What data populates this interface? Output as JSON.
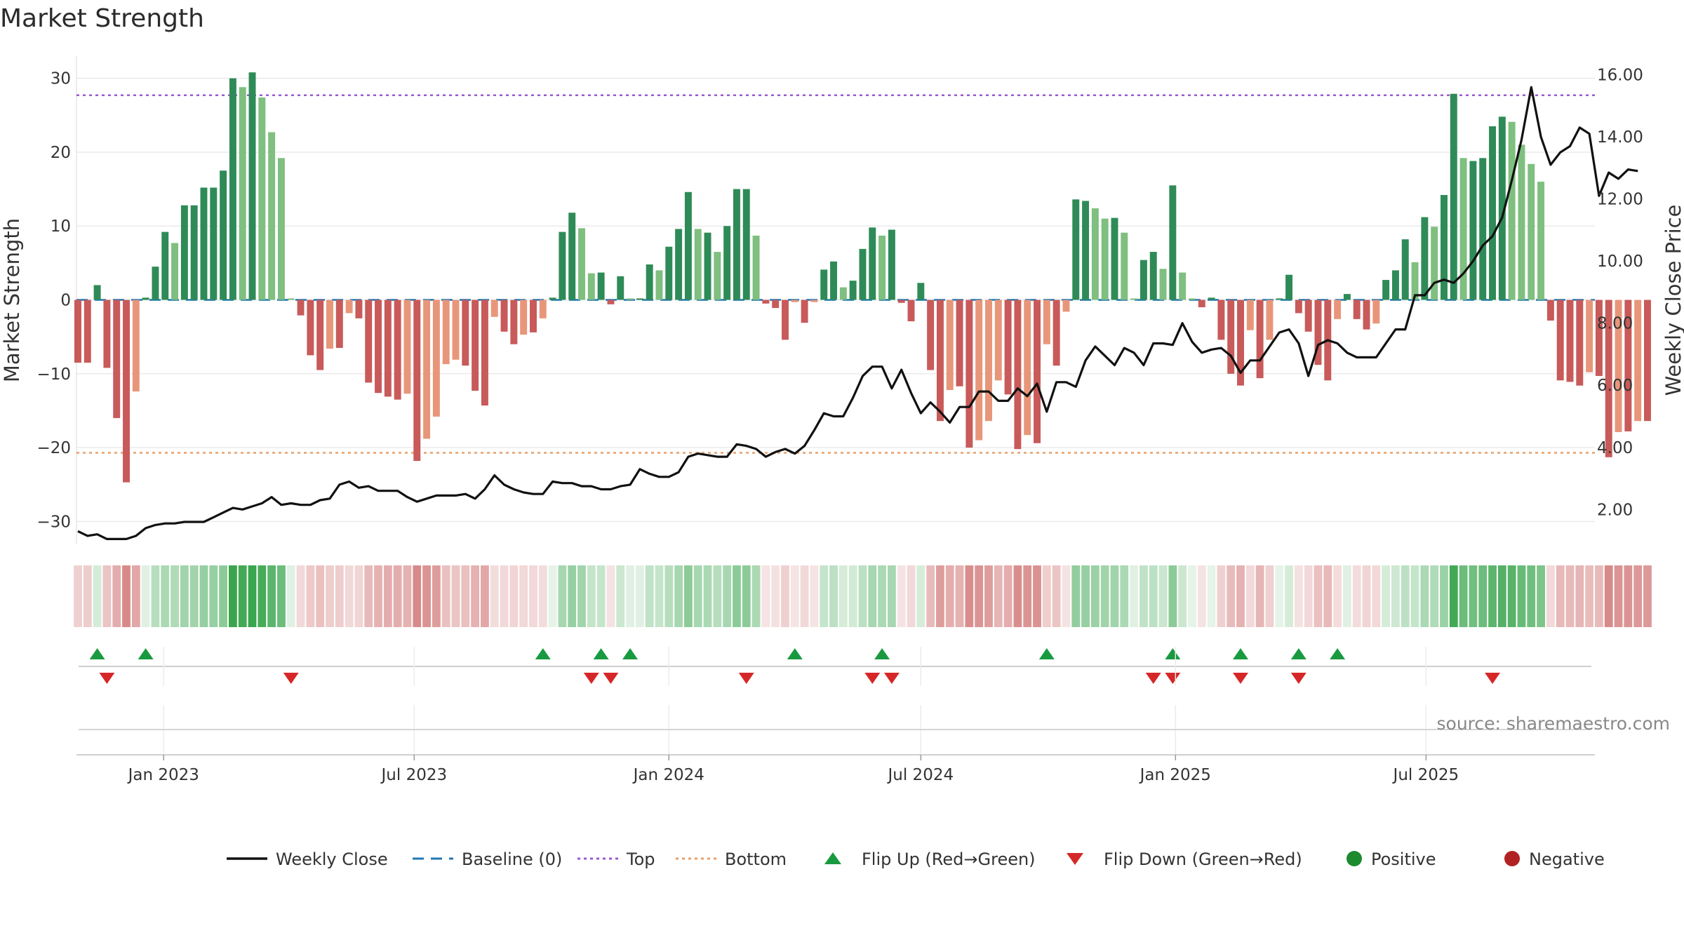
{
  "title": "Market Strength",
  "source": "source: sharemaestro.com",
  "chart_data": {
    "type": "bar",
    "title": "Market Strength",
    "ylabel_left": "Market Strength",
    "ylabel_right": "Weekly Close Price",
    "ylim_left": [
      -33,
      33
    ],
    "ylim_right": [
      0.9,
      16.6
    ],
    "yticks_left": [
      30,
      20,
      10,
      0,
      -10,
      -20,
      -30
    ],
    "ytick_labels_left": [
      "30",
      "20",
      "10",
      "0",
      "−10",
      "−20",
      "−30"
    ],
    "yticks_right": [
      16,
      14,
      12,
      10,
      8,
      6,
      4,
      2
    ],
    "ytick_labels_right": [
      "16.00",
      "14.00",
      "12.00",
      "10.00",
      "8.00",
      "6.00",
      "4.00",
      "2.00"
    ],
    "x_ticks": [
      {
        "date": "2023-01-01",
        "label": "Jan 2023"
      },
      {
        "date": "2023-07-01",
        "label": "Jul 2023"
      },
      {
        "date": "2024-01-01",
        "label": "Jan 2024"
      },
      {
        "date": "2024-07-01",
        "label": "Jul 2024"
      },
      {
        "date": "2025-01-01",
        "label": "Jan 2025"
      },
      {
        "date": "2025-07-01",
        "label": "Jul 2025"
      }
    ],
    "x_range": [
      "2022-10-30",
      "2025-10-31"
    ],
    "first_week": "2022-10-31",
    "reference_lines": {
      "top": 27.7,
      "bottom": -20.7,
      "baseline": 0
    },
    "strength": [
      -8.5,
      -8.5,
      2,
      -9.2,
      -16,
      -24.7,
      -12.4,
      0.3,
      4.5,
      9.2,
      7.7,
      12.8,
      12.8,
      15.2,
      15.2,
      17.5,
      30,
      28.8,
      30.8,
      27.4,
      22.7,
      19.2,
      0.2,
      -2.1,
      -7.5,
      -9.5,
      -6.6,
      -6.5,
      -1.8,
      -2.5,
      -11.2,
      -12.6,
      -13.1,
      -13.5,
      -12.7,
      -21.8,
      -18.8,
      -15.8,
      -8.7,
      -8.1,
      -8.9,
      -12.3,
      -14.3,
      -2.3,
      -4.3,
      -6,
      -4.7,
      -4.4,
      -2.5,
      0.3,
      9.2,
      11.8,
      9.7,
      3.6,
      3.7,
      -0.6,
      3.2,
      0.2,
      0.2,
      4.8,
      4,
      7.2,
      9.6,
      14.6,
      9.6,
      9.1,
      6.5,
      10,
      15,
      15,
      8.7,
      -0.5,
      -1.1,
      -5.4,
      -0.3,
      -3.1,
      -0.3,
      4.1,
      5.2,
      1.7,
      2.6,
      6.9,
      9.8,
      8.7,
      9.5,
      -0.4,
      -2.9,
      2.3,
      -9.5,
      -16.4,
      -12.2,
      -11.7,
      -20,
      -19,
      -16.4,
      -10.9,
      -12.8,
      -20.2,
      -18.3,
      -19.4,
      -6,
      -8.9,
      -1.6,
      13.6,
      13.4,
      12.4,
      11,
      11.1,
      9.1,
      0.2,
      5.4,
      6.5,
      4.2,
      15.5,
      3.7,
      0.2,
      -1,
      0.3,
      -5.4,
      -10,
      -11.6,
      -4.1,
      -10.6,
      -5.4,
      0.2,
      3.4,
      -1.8,
      -4.3,
      -8.8,
      -10.9,
      -2.6,
      0.8,
      -2.6,
      -4,
      -3.2,
      2.7,
      4,
      8.2,
      5.1,
      11.2,
      9.9,
      14.2,
      27.9,
      19.2,
      18.8,
      19.2,
      23.5,
      24.8,
      24.1,
      21,
      18.4,
      16,
      -2.8,
      -10.9,
      -11.1,
      -11.6,
      -9.8,
      -10.3,
      -21.3,
      -17.9,
      -17.8,
      -16.4,
      -16.4
    ],
    "weekly_close": [
      1.3,
      1.15,
      1.2,
      1.05,
      1.05,
      1.05,
      1.15,
      1.4,
      1.5,
      1.55,
      1.55,
      1.6,
      1.6,
      1.6,
      1.75,
      1.9,
      2.05,
      2,
      2.1,
      2.2,
      2.4,
      2.15,
      2.2,
      2.15,
      2.15,
      2.3,
      2.35,
      2.8,
      2.9,
      2.7,
      2.75,
      2.6,
      2.6,
      2.6,
      2.4,
      2.25,
      2.35,
      2.45,
      2.45,
      2.45,
      2.5,
      2.35,
      2.65,
      3.1,
      2.8,
      2.65,
      2.55,
      2.5,
      2.5,
      2.9,
      2.85,
      2.85,
      2.75,
      2.75,
      2.65,
      2.65,
      2.75,
      2.8,
      3.3,
      3.15,
      3.05,
      3.05,
      3.2,
      3.7,
      3.8,
      3.75,
      3.7,
      3.7,
      4.1,
      4.05,
      3.95,
      3.7,
      3.85,
      3.95,
      3.8,
      4.05,
      4.55,
      5.1,
      5,
      5,
      5.6,
      6.3,
      6.6,
      6.6,
      5.9,
      6.5,
      5.75,
      5.1,
      5.45,
      5.15,
      4.8,
      5.3,
      5.3,
      5.8,
      5.8,
      5.5,
      5.5,
      5.9,
      5.65,
      6.05,
      5.15,
      6.1,
      6.1,
      5.95,
      6.8,
      7.25,
      6.95,
      6.65,
      7.2,
      7.05,
      6.65,
      7.35,
      7.35,
      7.3,
      8.0,
      7.4,
      7.05,
      7.15,
      7.2,
      6.95,
      6.4,
      6.8,
      6.8,
      7.25,
      7.7,
      7.8,
      7.35,
      6.3,
      7.3,
      7.45,
      7.35,
      7.05,
      6.9,
      6.9,
      6.9,
      7.35,
      7.8,
      7.8,
      8.9,
      8.9,
      9.3,
      9.4,
      9.3,
      9.6,
      10.0,
      10.5,
      10.8,
      11.4,
      12.6,
      13.9,
      15.6,
      14.0,
      13.1,
      13.5,
      13.7,
      14.3,
      14.1,
      12.1,
      12.85,
      12.65,
      12.95,
      12.9
    ],
    "heat_bands": [
      0.24,
      0.26,
      0.2,
      0.3,
      0.42,
      0.6,
      0.45,
      0.15,
      0.35,
      0.4,
      0.38,
      0.45,
      0.45,
      0.5,
      0.5,
      0.55,
      0.95,
      0.9,
      0.95,
      0.88,
      0.78,
      0.7,
      0.15,
      0.2,
      0.28,
      0.32,
      0.26,
      0.26,
      0.2,
      0.22,
      0.36,
      0.4,
      0.42,
      0.42,
      0.4,
      0.6,
      0.55,
      0.5,
      0.32,
      0.3,
      0.32,
      0.4,
      0.45,
      0.18,
      0.2,
      0.22,
      0.2,
      0.2,
      0.18,
      0.12,
      0.42,
      0.5,
      0.45,
      0.28,
      0.28,
      0.15,
      0.25,
      0.15,
      0.15,
      0.3,
      0.28,
      0.35,
      0.42,
      0.55,
      0.42,
      0.4,
      0.35,
      0.42,
      0.55,
      0.55,
      0.4,
      0.14,
      0.16,
      0.24,
      0.14,
      0.2,
      0.14,
      0.28,
      0.32,
      0.2,
      0.22,
      0.32,
      0.42,
      0.4,
      0.42,
      0.15,
      0.2,
      0.2,
      0.35,
      0.5,
      0.42,
      0.4,
      0.58,
      0.55,
      0.5,
      0.38,
      0.42,
      0.58,
      0.55,
      0.56,
      0.25,
      0.3,
      0.15,
      0.52,
      0.5,
      0.48,
      0.45,
      0.45,
      0.4,
      0.15,
      0.3,
      0.32,
      0.26,
      0.55,
      0.25,
      0.12,
      0.15,
      0.12,
      0.24,
      0.35,
      0.4,
      0.2,
      0.38,
      0.24,
      0.12,
      0.2,
      0.16,
      0.2,
      0.32,
      0.36,
      0.18,
      0.15,
      0.18,
      0.22,
      0.2,
      0.2,
      0.24,
      0.32,
      0.28,
      0.4,
      0.38,
      0.48,
      0.9,
      0.7,
      0.68,
      0.7,
      0.78,
      0.82,
      0.8,
      0.72,
      0.68,
      0.62,
      0.2,
      0.36,
      0.36,
      0.38,
      0.34,
      0.35,
      0.6,
      0.55,
      0.55,
      0.52,
      0.52
    ],
    "flip_up_weeks": [
      2,
      7,
      48,
      54,
      57,
      74,
      83,
      100,
      113,
      120,
      126,
      130
    ],
    "flip_down_weeks": [
      3,
      22,
      53,
      55,
      69,
      82,
      84,
      111,
      113,
      120,
      126,
      146
    ],
    "legend": [
      {
        "label": "Weekly Close",
        "kind": "line",
        "color": "#111111"
      },
      {
        "label": "Baseline (0)",
        "kind": "dash",
        "color": "#1f77b4"
      },
      {
        "label": "Top",
        "kind": "dot",
        "color": "#9b59d0"
      },
      {
        "label": "Bottom",
        "kind": "dot",
        "color": "#e8a06a"
      },
      {
        "label": "Flip Up (Red→Green)",
        "kind": "triangle-up",
        "color": "#1a9a40"
      },
      {
        "label": "Flip Down (Green→Red)",
        "kind": "triangle-down",
        "color": "#d62728"
      },
      {
        "label": "Positive",
        "kind": "circle",
        "color": "#1e8a2e"
      },
      {
        "label": "Negative",
        "kind": "circle",
        "color": "#b22222"
      }
    ],
    "colors": {
      "positive_strong": "#2e8b57",
      "positive_weak": "#7fbf7f",
      "negative_strong": "#c85a5a",
      "negative_weak": "#e8967a",
      "top_line": "#9b59d0",
      "bottom_line": "#e8a06a",
      "baseline": "#1f77b4",
      "close_line": "#111111"
    }
  }
}
